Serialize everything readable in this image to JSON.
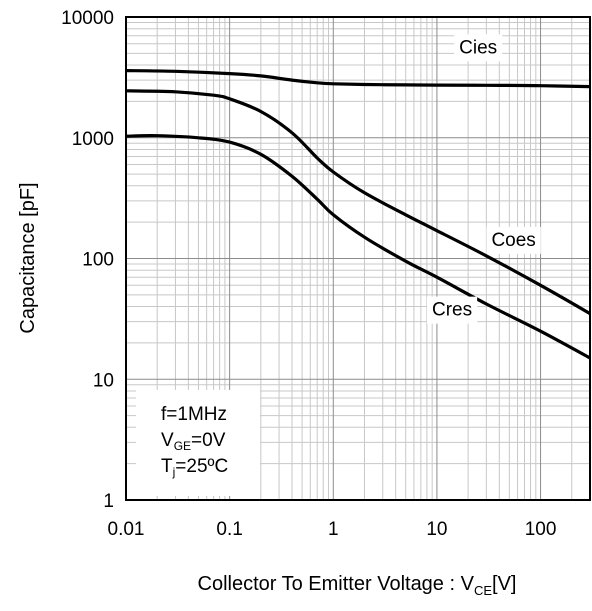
{
  "chart_data": {
    "type": "line",
    "xscale": "log",
    "yscale": "log",
    "xlim": [
      0.01,
      300
    ],
    "ylim": [
      1,
      10000
    ],
    "grid": true,
    "xlabel_main": "Collector To Emitter Voltage : V",
    "xlabel_sub": "CE",
    "xlabel_unit": "[V]",
    "ylabel": "Capacitance [pF]",
    "x_ticks": [
      {
        "value": 0.01,
        "label": "0.01"
      },
      {
        "value": 0.1,
        "label": "0.1"
      },
      {
        "value": 1,
        "label": "1"
      },
      {
        "value": 10,
        "label": "10"
      },
      {
        "value": 100,
        "label": "100"
      }
    ],
    "y_ticks": [
      {
        "value": 1,
        "label": "1"
      },
      {
        "value": 10,
        "label": "10"
      },
      {
        "value": 100,
        "label": "100"
      },
      {
        "value": 1000,
        "label": "1000"
      },
      {
        "value": 10000,
        "label": "10000"
      }
    ],
    "series": [
      {
        "name": "Cies",
        "label_x": 25,
        "label_y": 5500,
        "points": [
          [
            0.01,
            3600
          ],
          [
            0.03,
            3550
          ],
          [
            0.1,
            3400
          ],
          [
            0.2,
            3250
          ],
          [
            0.4,
            3000
          ],
          [
            0.7,
            2850
          ],
          [
            1,
            2800
          ],
          [
            2,
            2760
          ],
          [
            5,
            2740
          ],
          [
            10,
            2730
          ],
          [
            30,
            2720
          ],
          [
            100,
            2700
          ],
          [
            300,
            2650
          ]
        ]
      },
      {
        "name": "Coes",
        "label_x": 55,
        "label_y": 140,
        "points": [
          [
            0.01,
            2450
          ],
          [
            0.03,
            2400
          ],
          [
            0.07,
            2250
          ],
          [
            0.1,
            2100
          ],
          [
            0.2,
            1650
          ],
          [
            0.4,
            1100
          ],
          [
            0.7,
            680
          ],
          [
            1,
            520
          ],
          [
            2,
            350
          ],
          [
            5,
            230
          ],
          [
            10,
            170
          ],
          [
            30,
            105
          ],
          [
            100,
            60
          ],
          [
            300,
            35
          ]
        ]
      },
      {
        "name": "Cres",
        "label_x": 14,
        "label_y": 37,
        "points": [
          [
            0.01,
            1030
          ],
          [
            0.02,
            1040
          ],
          [
            0.05,
            1000
          ],
          [
            0.1,
            920
          ],
          [
            0.2,
            730
          ],
          [
            0.4,
            480
          ],
          [
            0.7,
            310
          ],
          [
            1,
            230
          ],
          [
            2,
            150
          ],
          [
            5,
            95
          ],
          [
            10,
            70
          ],
          [
            30,
            42
          ],
          [
            100,
            25
          ],
          [
            300,
            15
          ]
        ]
      }
    ],
    "annotation": {
      "line1": "f=1MHz",
      "line2_main": "V",
      "line2_sub": "GE",
      "line2_rest": "=0V",
      "line3_main": "T",
      "line3_sub": "j",
      "line3_rest": "=25ºC"
    }
  }
}
